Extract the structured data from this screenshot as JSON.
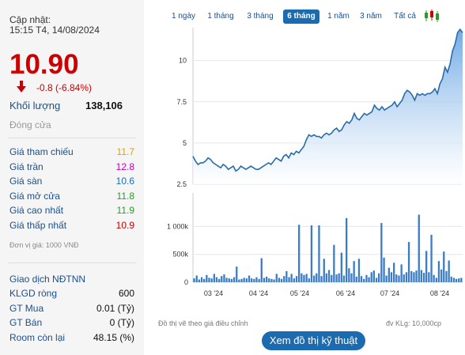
{
  "left_panel": {
    "update_label": "Cập nhật:",
    "update_time": "15:15 T4, 14/08/2024",
    "price": "10.90",
    "change": "-0.8 (-6.84%)",
    "volume_label": "Khối lượng",
    "volume_value": "138,106",
    "status": "Đóng cửa",
    "prices": [
      {
        "label": "Giá tham chiếu",
        "value": "11.7",
        "color": "#e0a000"
      },
      {
        "label": "Giá trần",
        "value": "12.8",
        "color": "#c000c0"
      },
      {
        "label": "Giá sàn",
        "value": "10.6",
        "color": "#1a6bb0"
      },
      {
        "label": "Giá mở cửa",
        "value": "11.8",
        "color": "#2a9a2a"
      },
      {
        "label": "Giá cao nhất",
        "value": "11.9",
        "color": "#2a9a2a"
      },
      {
        "label": "Giá thấp nhất",
        "value": "10.9",
        "color": "#c00000"
      }
    ],
    "unit_note": "Đơn vị giá: 1000 VNĐ",
    "foreign_title": "Giao dịch NĐTNN",
    "foreign": [
      {
        "label": "KLGD ròng",
        "value": "600"
      },
      {
        "label": "GT Mua",
        "value": "0.01 (Tỷ)"
      },
      {
        "label": "GT Bán",
        "value": "0 (Tỷ)"
      },
      {
        "label": "Room còn lại",
        "value": "48.15 (%)"
      }
    ]
  },
  "tabs": [
    "1 ngày",
    "1 tháng",
    "3 tháng",
    "6 tháng",
    "1 năm",
    "3 năm",
    "Tất cả"
  ],
  "active_tab": "6 tháng",
  "chart_data": [
    {
      "type": "area",
      "ylim": [
        2.5,
        12
      ],
      "yticks": [
        "2.5",
        "5",
        "7.5",
        "10"
      ],
      "y_tick_values": [
        2.5,
        5,
        7.5,
        10
      ],
      "series": [
        {
          "values": [
            4.2,
            3.9,
            3.7,
            3.8,
            3.8,
            3.9,
            4.1,
            4.0,
            3.8,
            3.7,
            3.6,
            3.5,
            3.7,
            3.6,
            3.4,
            3.5,
            3.6,
            3.3,
            3.4,
            3.6,
            3.5,
            3.4,
            3.5,
            3.6,
            3.5,
            3.4,
            3.4,
            3.5,
            3.6,
            3.7,
            3.8,
            3.7,
            3.9,
            4.1,
            4.0,
            3.9,
            4.2,
            4.3,
            4.1,
            4.4,
            4.3,
            4.5,
            4.4,
            4.6,
            4.8,
            5.2,
            5.5,
            5.4,
            5.5,
            5.4,
            5.4,
            5.3,
            5.5,
            5.6,
            5.5,
            5.6,
            5.8,
            5.9,
            5.7,
            5.8,
            6.1,
            6.3,
            6.2,
            6.4,
            6.8,
            6.5,
            6.4,
            6.6,
            6.8,
            6.7,
            6.8,
            6.9,
            7.3,
            7.1,
            7.0,
            7.2,
            7.0,
            7.1,
            7.2,
            7.3,
            7.5,
            7.2,
            7.4,
            7.6,
            8.0,
            8.2,
            8.1,
            7.9,
            7.6,
            8.0,
            7.9,
            8.0,
            7.9,
            8.0,
            8.0,
            8.1,
            8.3,
            8.0,
            8.6,
            8.9,
            9.6,
            9.3,
            9.8,
            10.6,
            11.0,
            11.7,
            11.9,
            11.7
          ]
        }
      ],
      "grid": true
    },
    {
      "type": "bar",
      "ylim": [
        0,
        1600
      ],
      "yticks": [
        "0",
        "500k",
        "1 000k"
      ],
      "y_tick_values": [
        0,
        500,
        1000
      ],
      "xticks": [
        "03 '24",
        "04 '24",
        "05 '24",
        "06 '24",
        "07 '24",
        "08 '24"
      ],
      "series": [
        {
          "values": [
            70,
            120,
            50,
            90,
            60,
            130,
            80,
            70,
            150,
            90,
            60,
            110,
            140,
            80,
            70,
            60,
            90,
            280,
            50,
            60,
            80,
            70,
            120,
            70,
            60,
            90,
            60,
            430,
            80,
            100,
            70,
            60,
            50,
            150,
            80,
            60,
            110,
            200,
            90,
            150,
            70,
            110,
            1030,
            160,
            130,
            150,
            70,
            1020,
            120,
            160,
            1020,
            110,
            420,
            160,
            220,
            130,
            670,
            140,
            160,
            530,
            120,
            1150,
            250,
            160,
            380,
            100,
            420,
            110,
            60,
            130,
            90,
            180,
            210,
            80,
            160,
            1060,
            440,
            120,
            260,
            180,
            350,
            140,
            120,
            320,
            140,
            180,
            720,
            200,
            180,
            210,
            1210,
            220,
            170,
            560,
            180,
            850,
            130,
            80,
            380,
            230,
            550,
            200,
            390,
            100,
            80,
            60,
            70,
            80
          ]
        }
      ],
      "grid": true
    }
  ],
  "footer_left": "Đồ thị vẽ theo giá điều chỉnh",
  "footer_right": "đv KLg: 10,000cp",
  "ta_button": "Xem đồ thị kỹ thuật"
}
